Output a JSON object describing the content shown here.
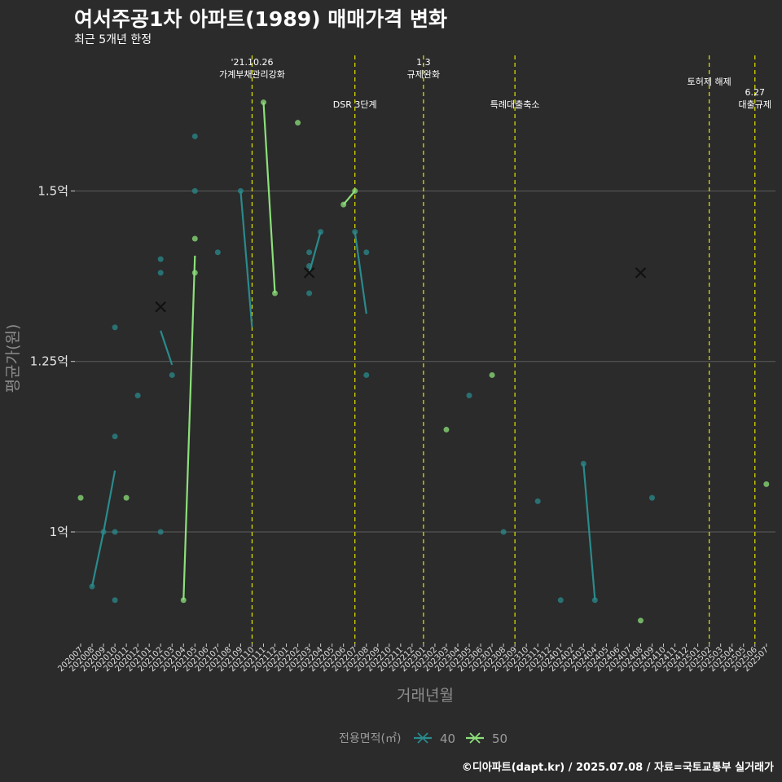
{
  "title": "여서주공1차 아파트(1989) 매매가격 변화",
  "subtitle": "최근 5개년 한정",
  "caption": "©디아파트(dapt.kr) / 2025.07.08 / 자료=국토교통부 실거래가",
  "colors": {
    "background": "#2b2b2b",
    "series_40": "#2a8a8c",
    "series_50": "#8ce07a",
    "vline": "#e5e500",
    "grid": "#5c5c5c"
  },
  "chart_data": {
    "type": "line",
    "xlabel": "거래년월",
    "ylabel": "평균가(원)",
    "ylim": [
      0.84,
      1.88
    ],
    "y_ticks": [
      {
        "value": 1.0,
        "label": "1억"
      },
      {
        "value": 1.25,
        "label": "1.25억"
      },
      {
        "value": 1.5,
        "label": "1.5억"
      }
    ],
    "categories": [
      "202007",
      "202008",
      "202009",
      "202010",
      "202011",
      "202012",
      "202101",
      "202102",
      "202103",
      "202104",
      "202105",
      "202106",
      "202107",
      "202108",
      "202109",
      "202110",
      "202111",
      "202112",
      "202201",
      "202202",
      "202203",
      "202204",
      "202205",
      "202206",
      "202207",
      "202208",
      "202209",
      "202210",
      "202211",
      "202212",
      "202301",
      "202302",
      "202303",
      "202304",
      "202305",
      "202306",
      "202307",
      "202308",
      "202309",
      "202310",
      "202311",
      "202312",
      "202401",
      "202402",
      "202403",
      "202404",
      "202405",
      "202406",
      "202407",
      "202408",
      "202409",
      "202410",
      "202411",
      "202412",
      "202501",
      "202502",
      "202503",
      "202504",
      "202505",
      "202506",
      "202507"
    ],
    "legend": {
      "title": "전용면적(㎡)",
      "position": "bottom"
    },
    "series": [
      {
        "name": "40",
        "color": "#2a8a8c",
        "values": [
          null,
          0.92,
          1.0,
          1.09,
          null,
          1.2,
          null,
          1.295,
          1.245,
          null,
          1.54,
          null,
          null,
          null,
          1.5,
          1.3,
          null,
          1.37,
          null,
          null,
          1.38,
          1.44,
          null,
          null,
          1.44,
          1.32,
          null,
          null,
          null,
          null,
          null,
          null,
          null,
          null,
          null,
          null,
          null,
          null,
          null,
          null,
          null,
          null,
          null,
          null,
          1.1,
          0.9,
          null,
          null,
          null,
          null,
          null,
          null,
          null,
          null,
          null,
          null,
          null,
          null,
          null,
          null,
          null
        ]
      },
      {
        "name": "50",
        "color": "#8ce07a",
        "values": [
          1.05,
          null,
          null,
          null,
          1.05,
          null,
          null,
          null,
          null,
          0.9,
          1.405,
          null,
          null,
          null,
          null,
          null,
          1.63,
          1.35,
          null,
          1.6,
          null,
          null,
          null,
          1.48,
          1.5,
          null,
          null,
          null,
          null,
          null,
          null,
          null,
          1.15,
          null,
          null,
          null,
          1.23,
          null,
          null,
          null,
          null,
          null,
          null,
          null,
          null,
          null,
          null,
          null,
          null,
          0.87,
          null,
          null,
          null,
          null,
          null,
          null,
          null,
          null,
          null,
          null,
          1.07
        ]
      }
    ],
    "points_40": [
      {
        "x": "202008",
        "y": 0.92
      },
      {
        "x": "202009",
        "y": 1.0
      },
      {
        "x": "202010",
        "y": 1.3
      },
      {
        "x": "202010",
        "y": 1.14
      },
      {
        "x": "202010",
        "y": 1.0
      },
      {
        "x": "202010",
        "y": 0.9
      },
      {
        "x": "202012",
        "y": 1.2
      },
      {
        "x": "202102",
        "y": 1.4
      },
      {
        "x": "202102",
        "y": 1.38
      },
      {
        "x": "202102",
        "y": 1.0
      },
      {
        "x": "202103",
        "y": 1.23
      },
      {
        "x": "202105",
        "y": 1.58
      },
      {
        "x": "202105",
        "y": 1.5
      },
      {
        "x": "202107",
        "y": 1.41
      },
      {
        "x": "202109",
        "y": 1.5
      },
      {
        "x": "202203",
        "y": 1.41
      },
      {
        "x": "202203",
        "y": 1.39
      },
      {
        "x": "202203",
        "y": 1.35
      },
      {
        "x": "202204",
        "y": 1.44
      },
      {
        "x": "202207",
        "y": 1.44
      },
      {
        "x": "202208",
        "y": 1.41
      },
      {
        "x": "202208",
        "y": 1.23
      },
      {
        "x": "202305",
        "y": 1.2
      },
      {
        "x": "202308",
        "y": 1.0
      },
      {
        "x": "202311",
        "y": 1.045
      },
      {
        "x": "202401",
        "y": 0.9
      },
      {
        "x": "202403",
        "y": 1.1
      },
      {
        "x": "202404",
        "y": 0.9
      },
      {
        "x": "202409",
        "y": 1.05
      }
    ],
    "points_50": [
      {
        "x": "202007",
        "y": 1.05
      },
      {
        "x": "202011",
        "y": 1.05
      },
      {
        "x": "202104",
        "y": 0.9
      },
      {
        "x": "202105",
        "y": 1.43
      },
      {
        "x": "202105",
        "y": 1.38
      },
      {
        "x": "202111",
        "y": 1.63
      },
      {
        "x": "202112",
        "y": 1.35
      },
      {
        "x": "202202",
        "y": 1.6
      },
      {
        "x": "202206",
        "y": 1.48
      },
      {
        "x": "202207",
        "y": 1.5
      },
      {
        "x": "202303",
        "y": 1.15
      },
      {
        "x": "202307",
        "y": 1.23
      },
      {
        "x": "202408",
        "y": 0.87
      },
      {
        "x": "202507",
        "y": 1.07
      }
    ],
    "cross_marks": [
      {
        "x": "202102",
        "y": 1.33
      },
      {
        "x": "202203",
        "y": 1.38
      },
      {
        "x": "202408",
        "y": 1.38
      }
    ],
    "events": [
      {
        "x": "202110",
        "lines": [
          "'21.10.26",
          "가계부채관리강화"
        ],
        "row": 1
      },
      {
        "x": "202207",
        "lines": [
          "DSR 3단계"
        ],
        "row": 3
      },
      {
        "x": "202301",
        "lines": [
          "1.3",
          "규제완화"
        ],
        "row": 1
      },
      {
        "x": "202309",
        "lines": [
          "특례대출축소"
        ],
        "row": 3
      },
      {
        "x": "202502",
        "lines": [
          "토허제 해제"
        ],
        "row": 2
      },
      {
        "x": "202506",
        "lines": [
          "6.27",
          "대출규제"
        ],
        "row": 3
      }
    ]
  }
}
